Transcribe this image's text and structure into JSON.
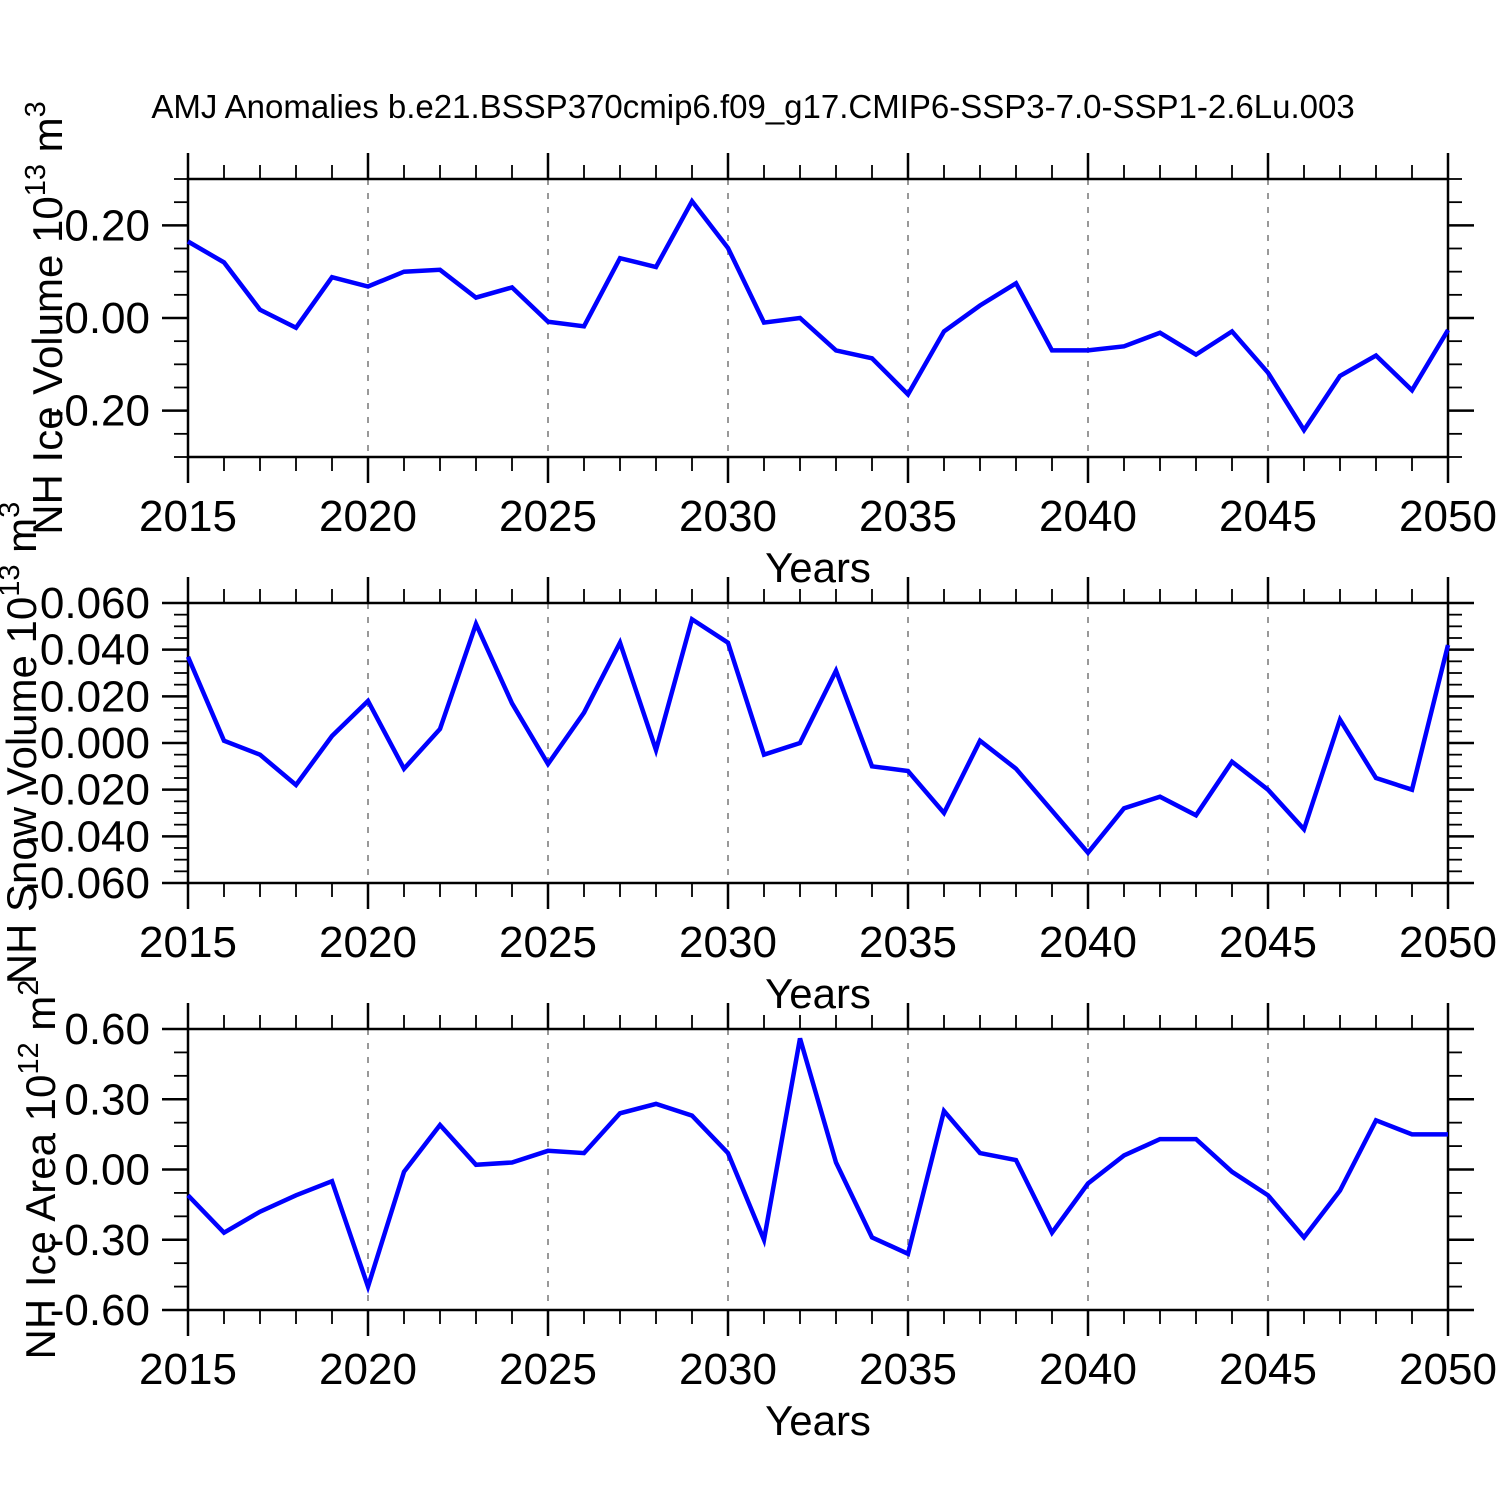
{
  "title": "AMJ Anomalies b.e21.BSSP370cmip6.f09_g17.CMIP6-SSP3-7.0-SSP1-2.6Lu.003",
  "colors": {
    "line": "#0000FF",
    "axis": "#000000",
    "gridline": "#999999",
    "background": "#FFFFFF",
    "text": "#000000"
  },
  "chart_data": [
    {
      "type": "line",
      "ylabel": {
        "text": "NH Ice Volume",
        "base": "10",
        "exponent": "13",
        "unit": "m",
        "unit_exponent": "3",
        "plain": "NH Ice Volume 10^13 m^3"
      },
      "xlabel": "Years",
      "ylim": [
        -0.3,
        0.3
      ],
      "x": [
        2015,
        2016,
        2017,
        2018,
        2019,
        2020,
        2021,
        2022,
        2023,
        2024,
        2025,
        2026,
        2027,
        2028,
        2029,
        2030,
        2031,
        2032,
        2033,
        2034,
        2035,
        2036,
        2037,
        2038,
        2039,
        2040,
        2041,
        2042,
        2043,
        2044,
        2045,
        2046,
        2047,
        2048,
        2049,
        2050
      ],
      "values": [
        0.165,
        0.12,
        0.018,
        -0.021,
        0.088,
        0.068,
        0.1,
        0.104,
        0.044,
        0.066,
        -0.008,
        -0.018,
        0.129,
        0.11,
        0.252,
        0.151,
        -0.01,
        0.0,
        -0.07,
        -0.087,
        -0.165,
        -0.029,
        0.027,
        0.075,
        -0.07,
        -0.07,
        -0.061,
        -0.032,
        -0.079,
        -0.029,
        -0.118,
        -0.242,
        -0.125,
        -0.081,
        -0.156,
        -0.026
      ],
      "yticks": {
        "major": [
          {
            "value": 0.2,
            "label": "0.20"
          },
          {
            "value": 0.0,
            "label": "0.00"
          },
          {
            "value": -0.2,
            "label": "-0.20"
          }
        ],
        "minor_step": 0.05
      },
      "xticks": {
        "years": [
          2015,
          2020,
          2025,
          2030,
          2035,
          2040,
          2045,
          2050
        ],
        "labels": [
          "2015",
          "2020",
          "2025",
          "2030",
          "2035",
          "2040",
          "2045",
          "2050"
        ],
        "major_every": 5
      },
      "gridline_years": [
        2020,
        2025,
        2030,
        2035,
        2040,
        2045
      ],
      "grid": "vertical-dashed",
      "legend": "none"
    },
    {
      "type": "line",
      "ylabel": {
        "text": "NH Snow Volume",
        "base": "10",
        "exponent": "13",
        "unit": "m",
        "unit_exponent": "3",
        "plain": "NH Snow Volume 10^13 m^3"
      },
      "xlabel": "Years",
      "ylim": [
        -0.06,
        0.06
      ],
      "x": [
        2015,
        2016,
        2017,
        2018,
        2019,
        2020,
        2021,
        2022,
        2023,
        2024,
        2025,
        2026,
        2027,
        2028,
        2029,
        2030,
        2031,
        2032,
        2033,
        2034,
        2035,
        2036,
        2037,
        2038,
        2039,
        2040,
        2041,
        2042,
        2043,
        2044,
        2045,
        2046,
        2047,
        2048,
        2049,
        2050
      ],
      "values": [
        0.037,
        0.001,
        -0.005,
        -0.018,
        0.003,
        0.018,
        -0.011,
        0.006,
        0.051,
        0.017,
        -0.009,
        0.013,
        0.043,
        -0.003,
        0.053,
        0.043,
        -0.005,
        0.0,
        0.031,
        -0.01,
        -0.012,
        -0.03,
        0.001,
        -0.011,
        -0.029,
        -0.047,
        -0.028,
        -0.023,
        -0.031,
        -0.008,
        -0.02,
        -0.037,
        0.01,
        -0.015,
        -0.02,
        0.042
      ],
      "yticks": {
        "major": [
          {
            "value": 0.06,
            "label": "0.060"
          },
          {
            "value": 0.04,
            "label": "0.040"
          },
          {
            "value": 0.02,
            "label": "0.020"
          },
          {
            "value": 0.0,
            "label": "0.000"
          },
          {
            "value": -0.02,
            "label": "-0.020"
          },
          {
            "value": -0.04,
            "label": "-0.040"
          },
          {
            "value": -0.06,
            "label": "-0.060"
          }
        ],
        "minor_step": 0.005
      },
      "xticks": {
        "years": [
          2015,
          2020,
          2025,
          2030,
          2035,
          2040,
          2045,
          2050
        ],
        "labels": [
          "2015",
          "2020",
          "2025",
          "2030",
          "2035",
          "2040",
          "2045",
          "2050"
        ],
        "major_every": 5
      },
      "gridline_years": [
        2020,
        2025,
        2030,
        2035,
        2040,
        2045
      ],
      "grid": "vertical-dashed",
      "legend": "none"
    },
    {
      "type": "line",
      "ylabel": {
        "text": "NH Ice Area",
        "base": "10",
        "exponent": "12",
        "unit": "m",
        "unit_exponent": "2",
        "plain": "NH Ice Area 10^12 m^2"
      },
      "xlabel": "Years",
      "ylim": [
        -0.6,
        0.6
      ],
      "x": [
        2015,
        2016,
        2017,
        2018,
        2019,
        2020,
        2021,
        2022,
        2023,
        2024,
        2025,
        2026,
        2027,
        2028,
        2029,
        2030,
        2031,
        2032,
        2033,
        2034,
        2035,
        2036,
        2037,
        2038,
        2039,
        2040,
        2041,
        2042,
        2043,
        2044,
        2045,
        2046,
        2047,
        2048,
        2049,
        2050
      ],
      "values": [
        -0.11,
        -0.27,
        -0.18,
        -0.11,
        -0.05,
        -0.5,
        -0.01,
        0.19,
        0.02,
        0.03,
        0.08,
        0.07,
        0.24,
        0.28,
        0.23,
        0.07,
        -0.3,
        0.56,
        0.03,
        -0.29,
        -0.36,
        0.25,
        0.07,
        0.04,
        -0.27,
        -0.06,
        0.06,
        0.13,
        0.13,
        -0.01,
        -0.11,
        -0.29,
        -0.09,
        0.21,
        0.15,
        0.15
      ],
      "yticks": {
        "major": [
          {
            "value": 0.6,
            "label": "0.60"
          },
          {
            "value": 0.3,
            "label": "0.30"
          },
          {
            "value": 0.0,
            "label": "0.00"
          },
          {
            "value": -0.3,
            "label": "-0.30"
          },
          {
            "value": -0.6,
            "label": "-0.60"
          }
        ],
        "minor_step": 0.1
      },
      "xticks": {
        "years": [
          2015,
          2020,
          2025,
          2030,
          2035,
          2040,
          2045,
          2050
        ],
        "labels": [
          "2015",
          "2020",
          "2025",
          "2030",
          "2035",
          "2040",
          "2045",
          "2050"
        ],
        "major_every": 5
      },
      "gridline_years": [
        2020,
        2025,
        2030,
        2035,
        2040,
        2045
      ],
      "grid": "vertical-dashed",
      "legend": "none"
    }
  ]
}
